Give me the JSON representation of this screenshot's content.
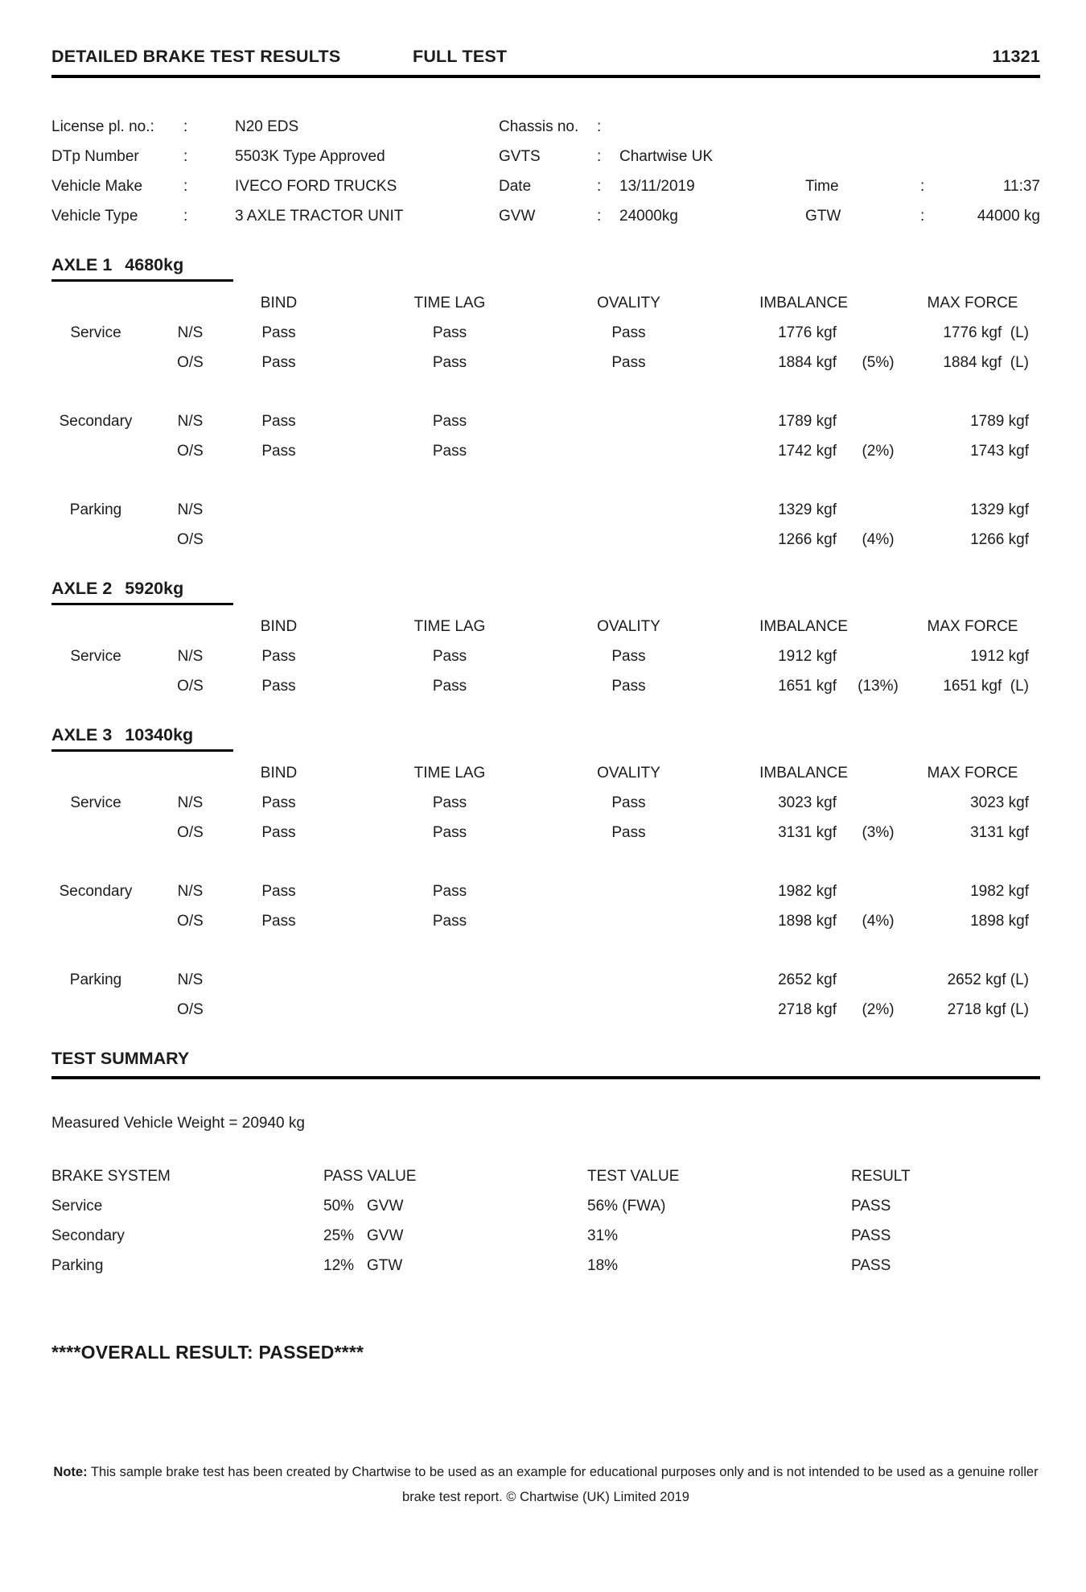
{
  "header": {
    "title": "DETAILED BRAKE TEST RESULTS",
    "test_type": "FULL TEST",
    "report_number": "11321"
  },
  "vehicle_info": {
    "rows": [
      {
        "cells": [
          {
            "label": "License pl. no.:",
            "colon": ":",
            "value": "N20 EDS"
          },
          {
            "label": "Chassis no.",
            "colon": ":",
            "value": ""
          }
        ]
      },
      {
        "cells": [
          {
            "label": "DTp Number",
            "colon": ":",
            "value": "5503K Type Approved"
          },
          {
            "label": "GVTS",
            "colon": ":",
            "value": "Chartwise UK"
          }
        ]
      },
      {
        "cells": [
          {
            "label": "Vehicle Make",
            "colon": ":",
            "value": "IVECO FORD TRUCKS"
          },
          {
            "label": "Date",
            "colon": ":",
            "value": "13/11/2019"
          },
          {
            "label": "Time",
            "colon": ":",
            "value": "11:37"
          }
        ]
      },
      {
        "cells": [
          {
            "label": "Vehicle Type",
            "colon": ":",
            "value": "3 AXLE TRACTOR UNIT"
          },
          {
            "label": "GVW",
            "colon": ":",
            "value": "24000kg"
          },
          {
            "label": "GTW",
            "colon": ":",
            "value": "44000 kg"
          }
        ]
      }
    ]
  },
  "axle_columns": [
    "BIND",
    "TIME LAG",
    "OVALITY",
    "IMBALANCE",
    "MAX FORCE"
  ],
  "axles": [
    {
      "title": "AXLE 1",
      "weight": "4680kg",
      "groups": [
        {
          "system": "Service",
          "rows": [
            {
              "side": "N/S",
              "bind": "Pass",
              "timelag": "Pass",
              "ovality": "Pass",
              "imbalance": "1776 kgf",
              "pct": "",
              "maxforce": "1776 kgf  (L)"
            },
            {
              "side": "O/S",
              "bind": "Pass",
              "timelag": "Pass",
              "ovality": "Pass",
              "imbalance": "1884 kgf",
              "pct": "(5%)",
              "maxforce": "1884 kgf  (L)"
            }
          ]
        },
        {
          "system": "Secondary",
          "rows": [
            {
              "side": "N/S",
              "bind": "Pass",
              "timelag": "Pass",
              "ovality": "",
              "imbalance": "1789 kgf",
              "pct": "",
              "maxforce": "1789 kgf"
            },
            {
              "side": "O/S",
              "bind": "Pass",
              "timelag": "Pass",
              "ovality": "",
              "imbalance": "1742 kgf",
              "pct": "(2%)",
              "maxforce": "1743 kgf"
            }
          ]
        },
        {
          "system": "Parking",
          "rows": [
            {
              "side": "N/S",
              "bind": "",
              "timelag": "",
              "ovality": "",
              "imbalance": "1329 kgf",
              "pct": "",
              "maxforce": "1329 kgf"
            },
            {
              "side": "O/S",
              "bind": "",
              "timelag": "",
              "ovality": "",
              "imbalance": "1266 kgf",
              "pct": "(4%)",
              "maxforce": "1266 kgf"
            }
          ]
        }
      ]
    },
    {
      "title": "AXLE 2",
      "weight": "5920kg",
      "groups": [
        {
          "system": "Service",
          "rows": [
            {
              "side": "N/S",
              "bind": "Pass",
              "timelag": "Pass",
              "ovality": "Pass",
              "imbalance": "1912 kgf",
              "pct": "",
              "maxforce": "1912 kgf"
            },
            {
              "side": "O/S",
              "bind": "Pass",
              "timelag": "Pass",
              "ovality": "Pass",
              "imbalance": "1651 kgf",
              "pct": "(13%)",
              "maxforce": "1651 kgf  (L)"
            }
          ]
        }
      ]
    },
    {
      "title": "AXLE 3",
      "weight": "10340kg",
      "groups": [
        {
          "system": "Service",
          "rows": [
            {
              "side": "N/S",
              "bind": "Pass",
              "timelag": "Pass",
              "ovality": "Pass",
              "imbalance": "3023 kgf",
              "pct": "",
              "maxforce": "3023 kgf"
            },
            {
              "side": "O/S",
              "bind": "Pass",
              "timelag": "Pass",
              "ovality": "Pass",
              "imbalance": "3131 kgf",
              "pct": "(3%)",
              "maxforce": "3131 kgf"
            }
          ]
        },
        {
          "system": "Secondary",
          "rows": [
            {
              "side": "N/S",
              "bind": "Pass",
              "timelag": "Pass",
              "ovality": "",
              "imbalance": "1982 kgf",
              "pct": "",
              "maxforce": "1982 kgf"
            },
            {
              "side": "O/S",
              "bind": "Pass",
              "timelag": "Pass",
              "ovality": "",
              "imbalance": "1898 kgf",
              "pct": "(4%)",
              "maxforce": "1898 kgf"
            }
          ]
        },
        {
          "system": "Parking",
          "rows": [
            {
              "side": "N/S",
              "bind": "",
              "timelag": "",
              "ovality": "",
              "imbalance": "2652 kgf",
              "pct": "",
              "maxforce": "2652 kgf (L)"
            },
            {
              "side": "O/S",
              "bind": "",
              "timelag": "",
              "ovality": "",
              "imbalance": "2718 kgf",
              "pct": "(2%)",
              "maxforce": "2718 kgf (L)"
            }
          ]
        }
      ]
    }
  ],
  "test_summary": {
    "heading": "TEST SUMMARY",
    "measured_weight": "Measured Vehicle Weight = 20940 kg",
    "columns": [
      "BRAKE SYSTEM",
      "PASS VALUE",
      "TEST VALUE",
      "RESULT"
    ],
    "rows": [
      {
        "system": "Service",
        "pass_pct": "50%",
        "pass_basis": "GVW",
        "test_value": "56% (FWA)",
        "result": "PASS"
      },
      {
        "system": "Secondary",
        "pass_pct": "25%",
        "pass_basis": "GVW",
        "test_value": "31%",
        "result": "PASS"
      },
      {
        "system": "Parking",
        "pass_pct": "12%",
        "pass_basis": "GTW",
        "test_value": "18%",
        "result": "PASS"
      }
    ]
  },
  "overall_result": "****OVERALL RESULT: PASSED****",
  "footer_note": {
    "label": "Note:",
    "text": " This sample brake test has been created by Chartwise to be used as an example for educational purposes only and is not intended to be used as a genuine roller brake test report. © Chartwise (UK) Limited 2019"
  }
}
